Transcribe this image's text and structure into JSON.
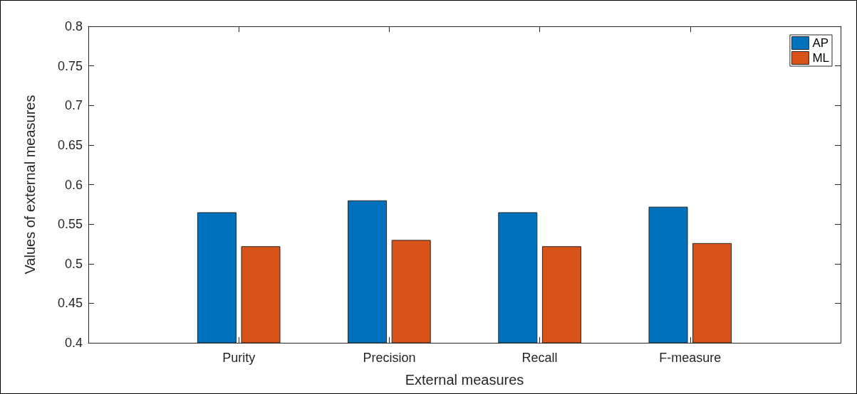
{
  "chart_data": {
    "type": "bar",
    "xlabel": "External measures",
    "ylabel": "Values of external measures",
    "categories": [
      null,
      "Purity",
      "Precision",
      "Recall",
      "F-measure",
      null
    ],
    "series": [
      {
        "name": "AP",
        "color": "#0072bd",
        "values": [
          null,
          0.565,
          0.58,
          0.565,
          0.572,
          null
        ]
      },
      {
        "name": "ML",
        "color": "#d95319",
        "values": [
          null,
          0.522,
          0.53,
          0.522,
          0.526,
          null
        ]
      }
    ],
    "ylim": [
      0.4,
      0.8
    ],
    "yticks": [
      0.4,
      0.45,
      0.5,
      0.55,
      0.6,
      0.65,
      0.7,
      0.75,
      0.8
    ],
    "grid": false,
    "legend": "top right"
  }
}
